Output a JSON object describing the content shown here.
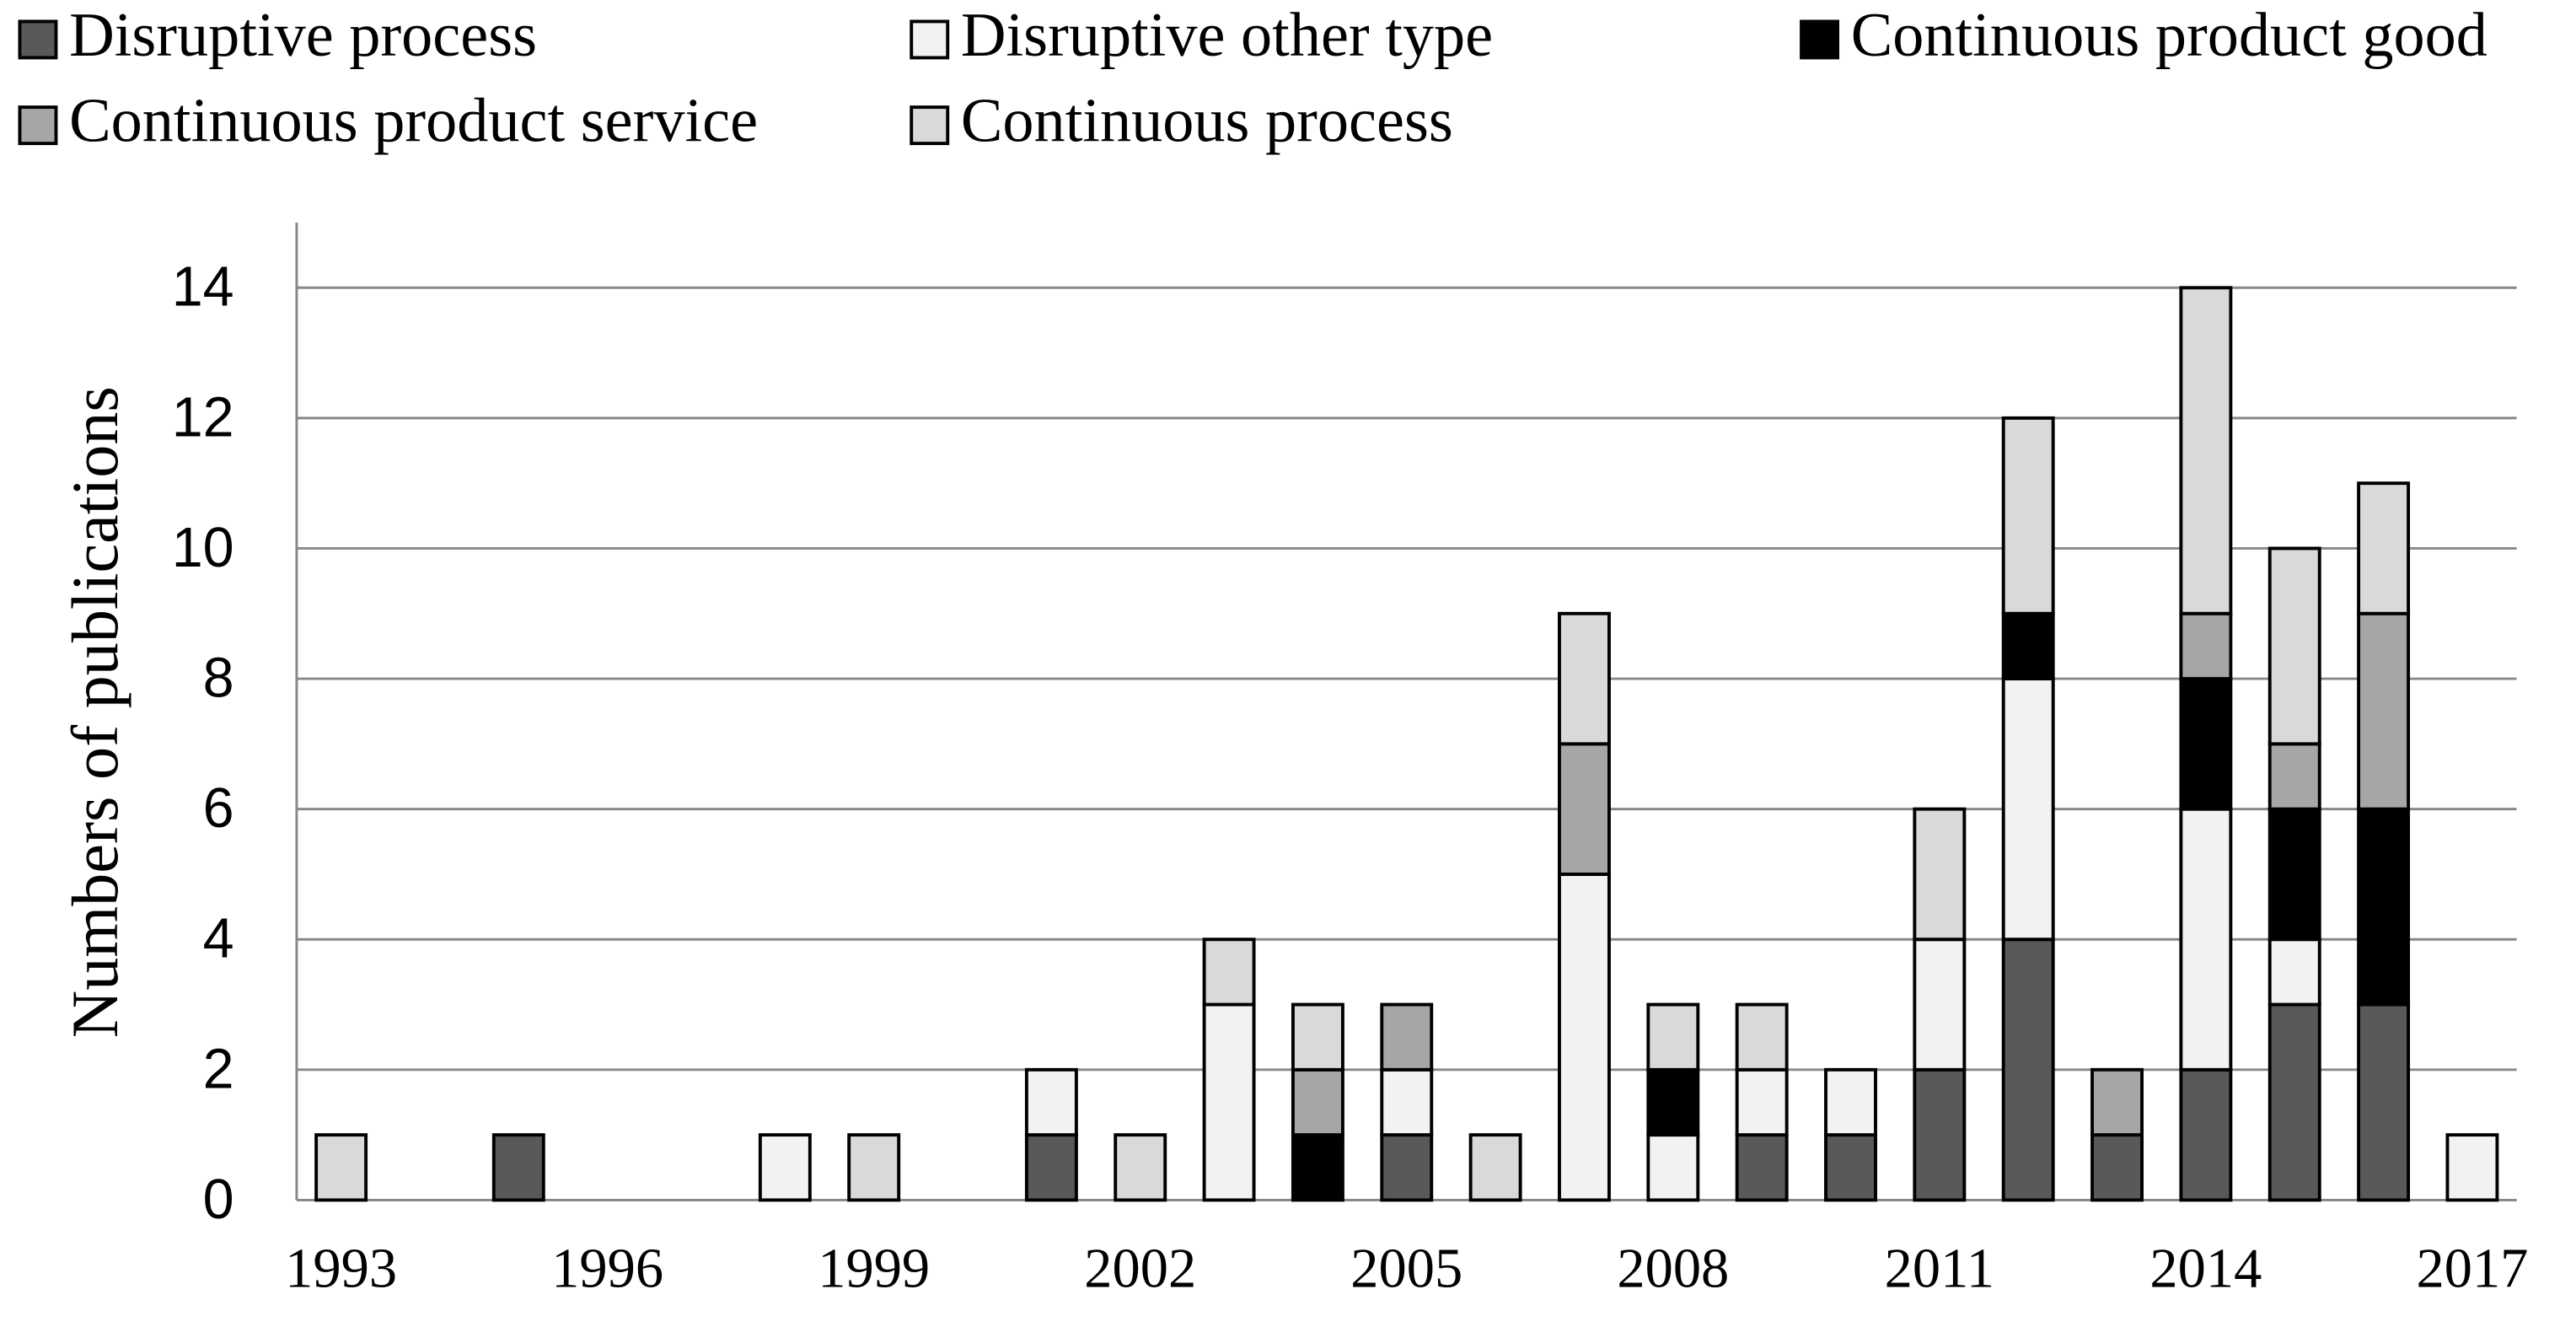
{
  "chart_data": {
    "type": "stacked-bar",
    "y_label": "Numbers of publications",
    "categories": [
      "1993",
      null,
      null,
      "1996",
      null,
      null,
      "1999",
      null,
      null,
      "2002",
      null,
      null,
      "2005",
      null,
      null,
      "2008",
      null,
      null,
      "2011",
      null,
      null,
      "2014",
      null,
      null,
      "2017"
    ],
    "series": [
      {
        "name": "Disruptive process",
        "color": "#595959",
        "values": [
          0,
          0,
          1,
          0,
          0,
          0,
          0,
          0,
          1,
          0,
          0,
          0,
          1,
          0,
          0,
          0,
          1,
          1,
          2,
          4,
          1,
          2,
          3,
          3,
          0
        ]
      },
      {
        "name": "Disruptive other type",
        "color": "#f2f2f2",
        "values": [
          0,
          0,
          0,
          0,
          0,
          1,
          0,
          0,
          1,
          0,
          3,
          0,
          1,
          0,
          5,
          1,
          1,
          1,
          2,
          4,
          0,
          4,
          1,
          0,
          1
        ]
      },
      {
        "name": "Continuous product good",
        "color": "#000000",
        "values": [
          0,
          0,
          0,
          0,
          0,
          0,
          0,
          0,
          0,
          0,
          0,
          1,
          0,
          0,
          0,
          1,
          0,
          0,
          0,
          1,
          0,
          2,
          2,
          3,
          0
        ]
      },
      {
        "name": "Continuous product service",
        "color": "#a6a6a6",
        "values": [
          0,
          0,
          0,
          0,
          0,
          0,
          0,
          0,
          0,
          0,
          0,
          1,
          1,
          0,
          2,
          0,
          0,
          0,
          0,
          0,
          1,
          1,
          1,
          3,
          0
        ]
      },
      {
        "name": "Continuous process",
        "color": "#d9d9d9",
        "values": [
          1,
          0,
          0,
          0,
          0,
          0,
          1,
          0,
          0,
          1,
          1,
          1,
          0,
          1,
          2,
          1,
          1,
          0,
          2,
          3,
          0,
          5,
          3,
          2,
          0
        ]
      }
    ],
    "ylim": [
      0,
      15
    ],
    "yticks": [
      0,
      2,
      4,
      6,
      8,
      10,
      12,
      14
    ],
    "grid": true
  }
}
